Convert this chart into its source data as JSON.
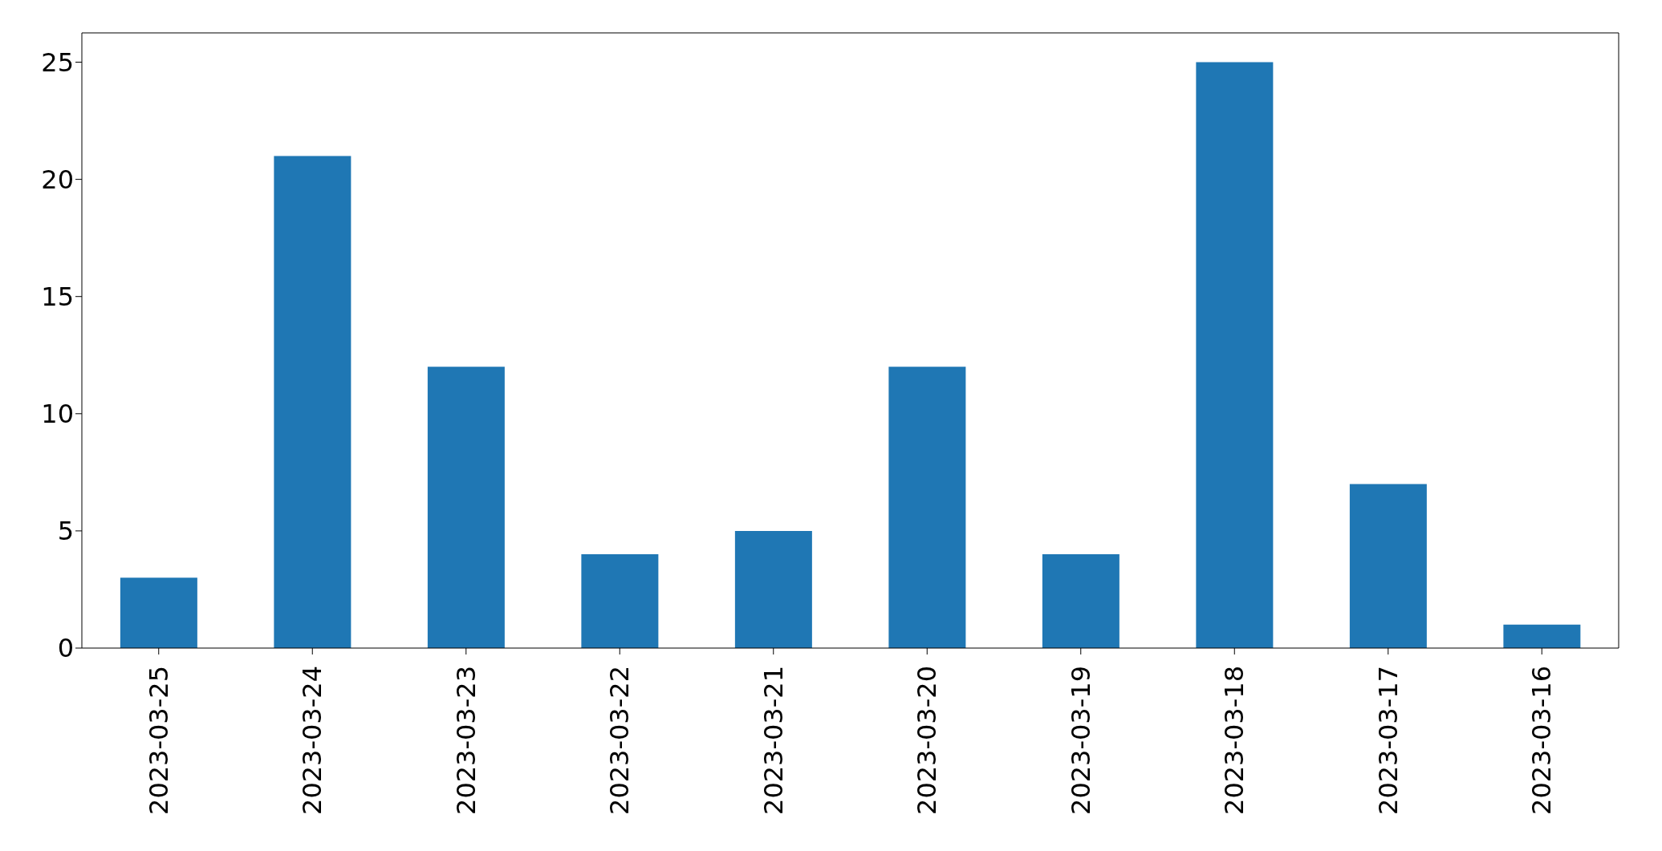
{
  "chart_data": {
    "type": "bar",
    "categories": [
      "2023-03-25",
      "2023-03-24",
      "2023-03-23",
      "2023-03-22",
      "2023-03-21",
      "2023-03-20",
      "2023-03-19",
      "2023-03-18",
      "2023-03-17",
      "2023-03-16"
    ],
    "values": [
      3,
      21,
      12,
      4,
      5,
      12,
      4,
      25,
      7,
      1
    ],
    "color": "#1f77b4",
    "ylim": [
      0,
      26.25
    ],
    "yticks": [
      0,
      5,
      10,
      15,
      20,
      25
    ]
  }
}
